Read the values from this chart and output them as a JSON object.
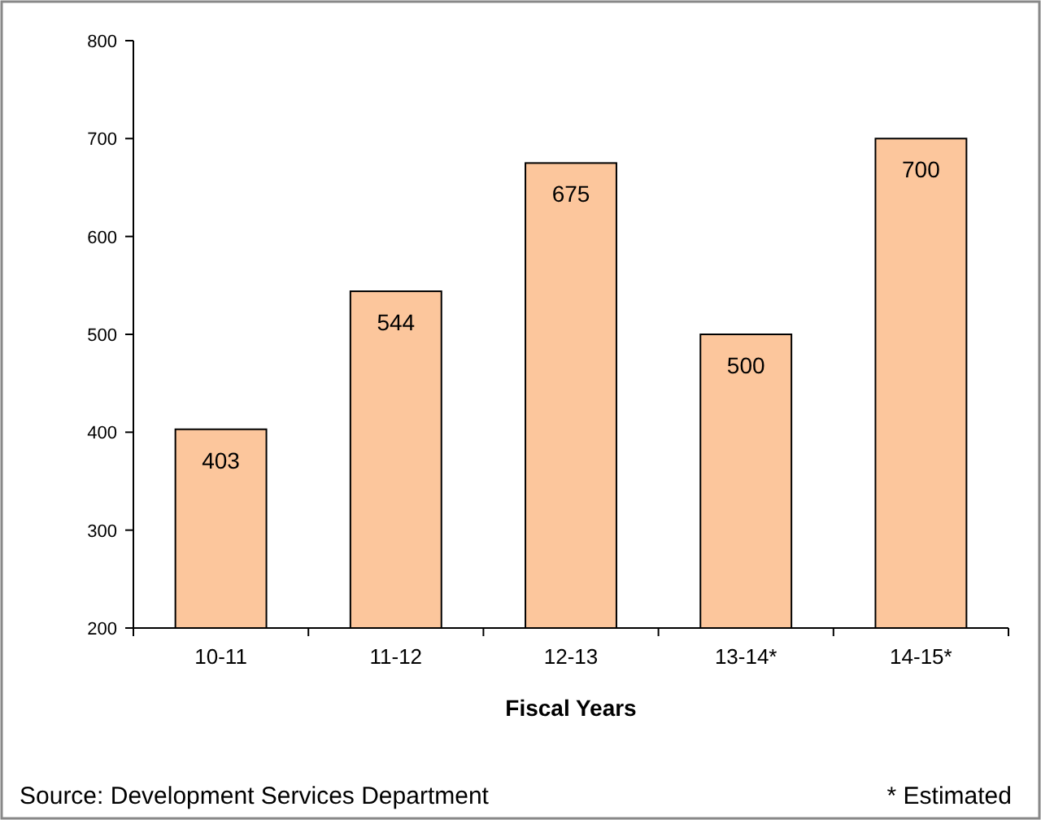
{
  "chart_data": {
    "type": "bar",
    "xlabel": "Fiscal Years",
    "categories": [
      "10-11",
      "11-12",
      "12-13",
      "13-14*",
      "14-15*"
    ],
    "values": [
      403,
      544,
      675,
      500,
      700
    ],
    "color": "#fcc69c",
    "ylim": [
      200,
      800
    ],
    "yticks": [
      200,
      300,
      400,
      500,
      600,
      700,
      800
    ],
    "data_labels": true,
    "annotations": [
      "Source:  Development Services Department",
      "* Estimated"
    ]
  }
}
